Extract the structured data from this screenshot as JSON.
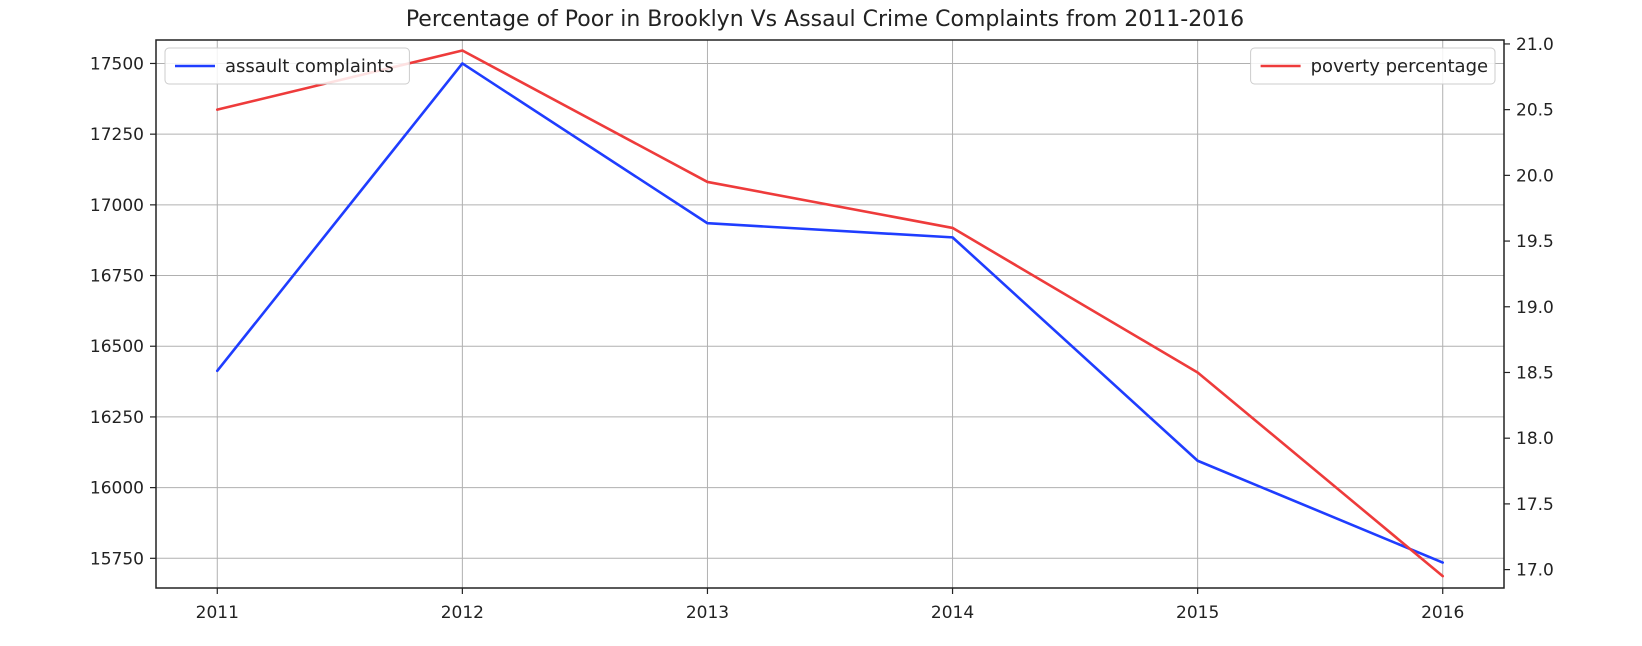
{
  "chart_data": {
    "type": "line",
    "title": "Percentage of Poor in Brooklyn Vs Assaul Crime Complaints from 2011-2016",
    "xlabel": "",
    "x": [
      "2011",
      "2012",
      "2013",
      "2014",
      "2015",
      "2016"
    ],
    "xlim": [
      2010.75,
      2016.25
    ],
    "grid": true,
    "left_axis": {
      "ylabel": "",
      "ylim": [
        15645,
        17583
      ],
      "ticks": [
        "15750",
        "16000",
        "16250",
        "16500",
        "16750",
        "17000",
        "17250",
        "17500"
      ]
    },
    "right_axis": {
      "ylabel": "",
      "ylim": [
        16.86,
        21.03
      ],
      "ticks": [
        "17.0",
        "17.5",
        "18.0",
        "18.5",
        "19.0",
        "19.5",
        "20.0",
        "20.5",
        "21.0"
      ]
    },
    "series": [
      {
        "name": "assault complaints",
        "axis": "left",
        "color": "#1f3dff",
        "values": [
          16413,
          17500,
          16935,
          16885,
          16095,
          15735
        ]
      },
      {
        "name": "poverty percentage",
        "axis": "right",
        "color": "#ee3b3b",
        "values": [
          20.5,
          20.95,
          19.95,
          19.6,
          18.5,
          16.95
        ]
      }
    ],
    "legends": [
      {
        "series": "assault complaints",
        "placement": "upper-left"
      },
      {
        "series": "poverty percentage",
        "placement": "upper-right"
      }
    ]
  }
}
